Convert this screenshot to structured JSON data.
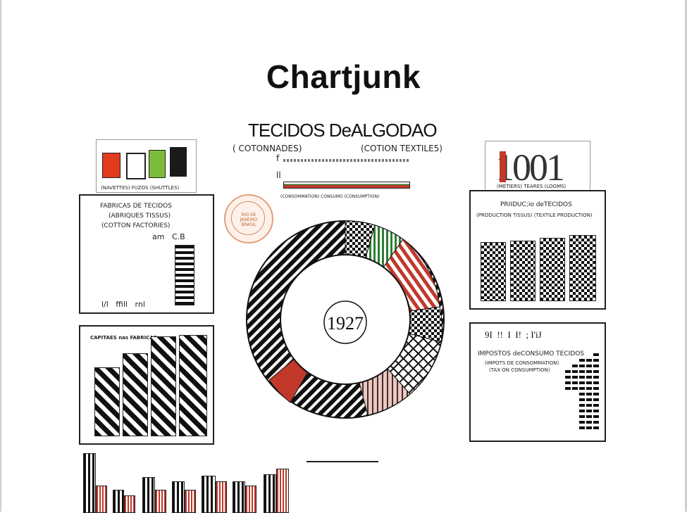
{
  "slide": {
    "title": "Chartjunk"
  },
  "infographic": {
    "header": {
      "main": "TECIDOS DeALGODAO",
      "sub_left": "( COTONNADES)",
      "sub_right": "(COTION TEXTILE5)",
      "small_f": "f",
      "small_l": "ll",
      "consumo": "(CONSOMMATION) CONSUMO (CONSUMPTION)"
    },
    "fuzos": {
      "caption": "(NAVETTES) FUZOS (SHUTTLES)",
      "colors": [
        "#e23b1e",
        "#ffffff",
        "#7dbb3c",
        "#1a1a1a"
      ]
    },
    "teares": {
      "number": "1001",
      "caption": "(METIERS) TEARES (LOOMS)",
      "accent": "#c0392b"
    },
    "fabricas": {
      "line1": "FABRICAS DE TECIDOS",
      "line2": "(ABRIQUES TISSUS)",
      "line3": "(COTTON FACTORIES)",
      "top_labels": "am   C.B",
      "bottom_labels": "l/l   ffill   rnl"
    },
    "producao": {
      "line1": "PRIIDUC;io deTECIDOS",
      "line2": "(PRODUCTION TISSUS) (TEXTILE PRODUCTION)"
    },
    "capitaes": {
      "line1": "CAPITAES nas FABRICAS"
    },
    "impostos": {
      "top": "9I  !!  I  I!  ; I'iJ",
      "line1": "IMPOSTOS deCONSUMO TECIDOS",
      "line2": "(IMPOTS DE CONSOMMATION)",
      "line3": "(TAX ON CONSUMPTION)"
    },
    "seal": {
      "text": "RIO DE JANEIRO BRASIL"
    },
    "ring": {
      "year": "1927"
    }
  }
}
